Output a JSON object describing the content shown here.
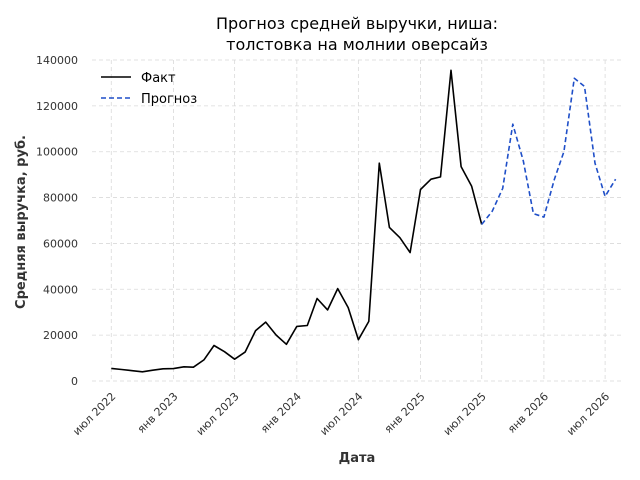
{
  "chart_data": {
    "type": "line",
    "title_lines": [
      "Прогноз средней выручки, ниша:",
      "толстовка на молнии оверсайз"
    ],
    "xlabel": "Дата",
    "ylabel": "Средняя выручка, руб.",
    "ylim": [
      0,
      140000
    ],
    "yticks": [
      0,
      20000,
      40000,
      60000,
      80000,
      100000,
      120000,
      140000
    ],
    "xlim": [
      "2022-05-05",
      "2026-08-20"
    ],
    "xticks": [
      {
        "date": "2022-07-01",
        "label": "июл 2022"
      },
      {
        "date": "2023-01-01",
        "label": "янв 2023"
      },
      {
        "date": "2023-07-01",
        "label": "июл 2023"
      },
      {
        "date": "2024-01-01",
        "label": "янв 2024"
      },
      {
        "date": "2024-07-01",
        "label": "июл 2024"
      },
      {
        "date": "2025-01-01",
        "label": "янв 2025"
      },
      {
        "date": "2025-07-01",
        "label": "июл 2025"
      },
      {
        "date": "2026-01-01",
        "label": "янв 2026"
      },
      {
        "date": "2026-07-01",
        "label": "июл 2026"
      }
    ],
    "grid": true,
    "legend_position": "top-left",
    "series": [
      {
        "name": "Факт",
        "color": "#000000",
        "style": "solid",
        "x": [
          "2022-07-01",
          "2022-08-01",
          "2022-09-01",
          "2022-10-01",
          "2022-11-01",
          "2022-12-01",
          "2023-01-01",
          "2023-02-01",
          "2023-03-01",
          "2023-04-01",
          "2023-05-01",
          "2023-06-01",
          "2023-07-01",
          "2023-08-01",
          "2023-09-01",
          "2023-10-01",
          "2023-11-01",
          "2023-12-01",
          "2024-01-01",
          "2024-02-01",
          "2024-03-01",
          "2024-04-01",
          "2024-05-01",
          "2024-06-01",
          "2024-07-01",
          "2024-08-01",
          "2024-09-01",
          "2024-10-01",
          "2024-11-01",
          "2024-12-01",
          "2025-01-01",
          "2025-02-01",
          "2025-03-01",
          "2025-04-01",
          "2025-05-01",
          "2025-06-01",
          "2025-07-01"
        ],
        "y": [
          5500,
          5000,
          4500,
          4000,
          4700,
          5300,
          5400,
          6200,
          6000,
          9200,
          15500,
          12800,
          9500,
          12600,
          22000,
          25700,
          20000,
          16000,
          23800,
          24200,
          36000,
          31000,
          40300,
          32000,
          18000,
          26000,
          95000,
          67000,
          62500,
          56000,
          83500,
          88000,
          89000,
          135500,
          93500,
          85000,
          68300
        ]
      },
      {
        "name": "Прогноз",
        "color": "#1f4fc8",
        "style": "dashed",
        "x": [
          "2025-07-01",
          "2025-08-01",
          "2025-09-01",
          "2025-10-01",
          "2025-11-01",
          "2025-12-01",
          "2026-01-01",
          "2026-02-01",
          "2026-03-01",
          "2026-04-01",
          "2026-05-01",
          "2026-06-01",
          "2026-07-01",
          "2026-08-01"
        ],
        "y": [
          68300,
          74000,
          84000,
          112000,
          96000,
          73000,
          71500,
          88000,
          100000,
          132000,
          128500,
          95000,
          80500,
          88000
        ]
      }
    ]
  }
}
